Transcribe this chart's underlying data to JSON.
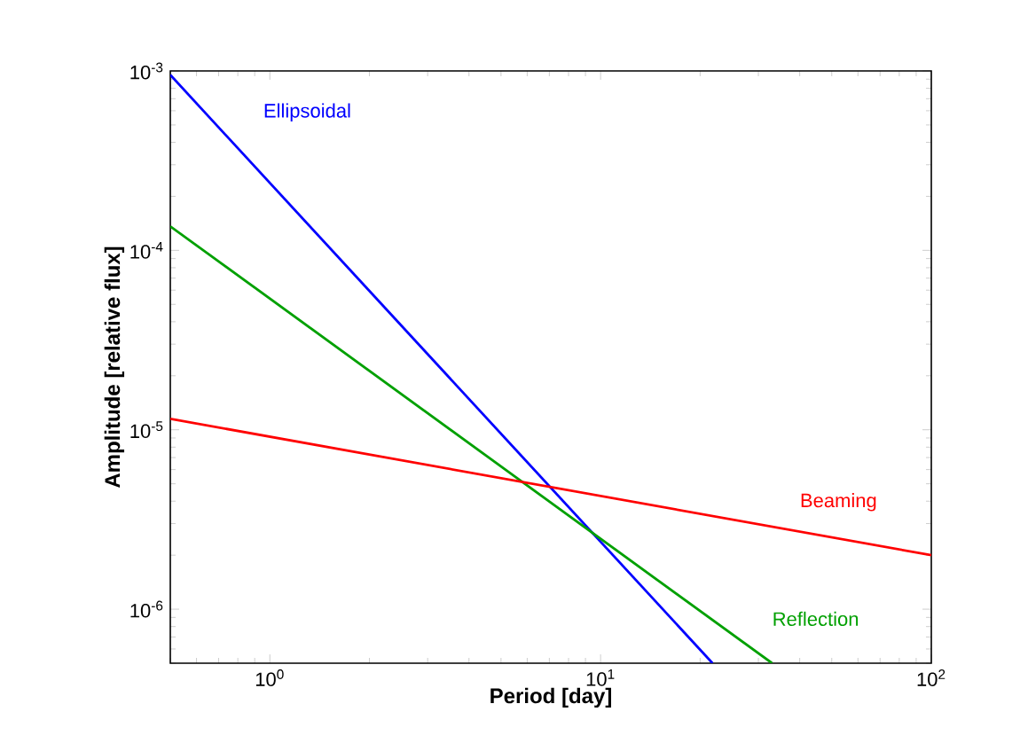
{
  "chart_data": {
    "type": "line",
    "xlabel": "Period [day]",
    "ylabel": "Amplitude [relative flux]",
    "log": "xy",
    "grid": false,
    "legend": false,
    "marker": "none",
    "line_style": "solid",
    "xlim": [
      0.5,
      100
    ],
    "ylim": [
      5e-07,
      0.001
    ],
    "xticks": [
      {
        "value": 1,
        "label": "10$^{0}$"
      },
      {
        "value": 10,
        "label": "10$^{1}$"
      },
      {
        "value": 100,
        "label": "10$^{2}$"
      }
    ],
    "yticks": [
      {
        "value": 1e-06,
        "label": "10$^{-6}$"
      },
      {
        "value": 1e-05,
        "label": "10$^{-5}$"
      },
      {
        "value": 0.0001,
        "label": "10$^{-4}$"
      },
      {
        "value": 0.001,
        "label": "10$^{-3}$"
      }
    ],
    "series": [
      {
        "name": "Ellipsoidal",
        "color": "#0000ff",
        "x": [
          0.5,
          21.8
        ],
        "values": [
          0.00095,
          5e-07
        ]
      },
      {
        "name": "Reflection",
        "color": "#00a000",
        "x": [
          0.5,
          33
        ],
        "values": [
          0.000136,
          5e-07
        ]
      },
      {
        "name": "Beaming",
        "color": "#ff0000",
        "x": [
          0.5,
          100
        ],
        "values": [
          1.15e-05,
          2e-06
        ]
      }
    ]
  }
}
